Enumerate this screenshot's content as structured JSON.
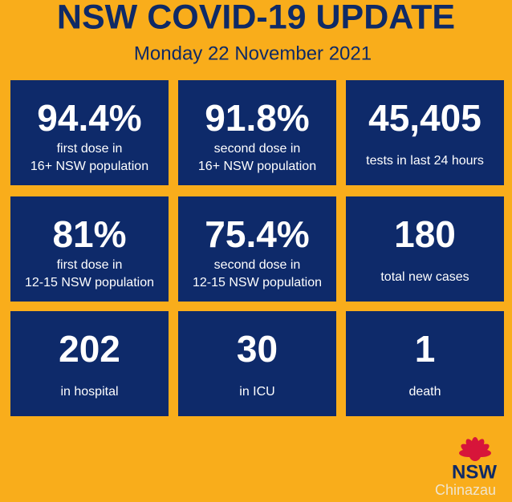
{
  "header": {
    "title": "NSW COVID-19 UPDATE",
    "date": "Monday 22 November 2021"
  },
  "tiles": [
    {
      "value": "94.4%",
      "label": [
        "first dose in",
        "16+ NSW population"
      ]
    },
    {
      "value": "91.8%",
      "label": [
        "second dose in",
        "16+ NSW population"
      ]
    },
    {
      "value": "45,405",
      "label": [
        "tests in last 24 hours"
      ]
    },
    {
      "value": "81%",
      "label": [
        "first dose in",
        "12-15 NSW population"
      ]
    },
    {
      "value": "75.4%",
      "label": [
        "second dose in",
        "12-15 NSW population"
      ]
    },
    {
      "value": "180",
      "label": [
        "total new cases"
      ]
    },
    {
      "value": "202",
      "label": [
        "in hospital"
      ]
    },
    {
      "value": "30",
      "label": [
        "in ICU"
      ]
    },
    {
      "value": "1",
      "label": [
        "death"
      ]
    }
  ],
  "logo": {
    "text": "NSW"
  },
  "watermark": "Chinazau"
}
